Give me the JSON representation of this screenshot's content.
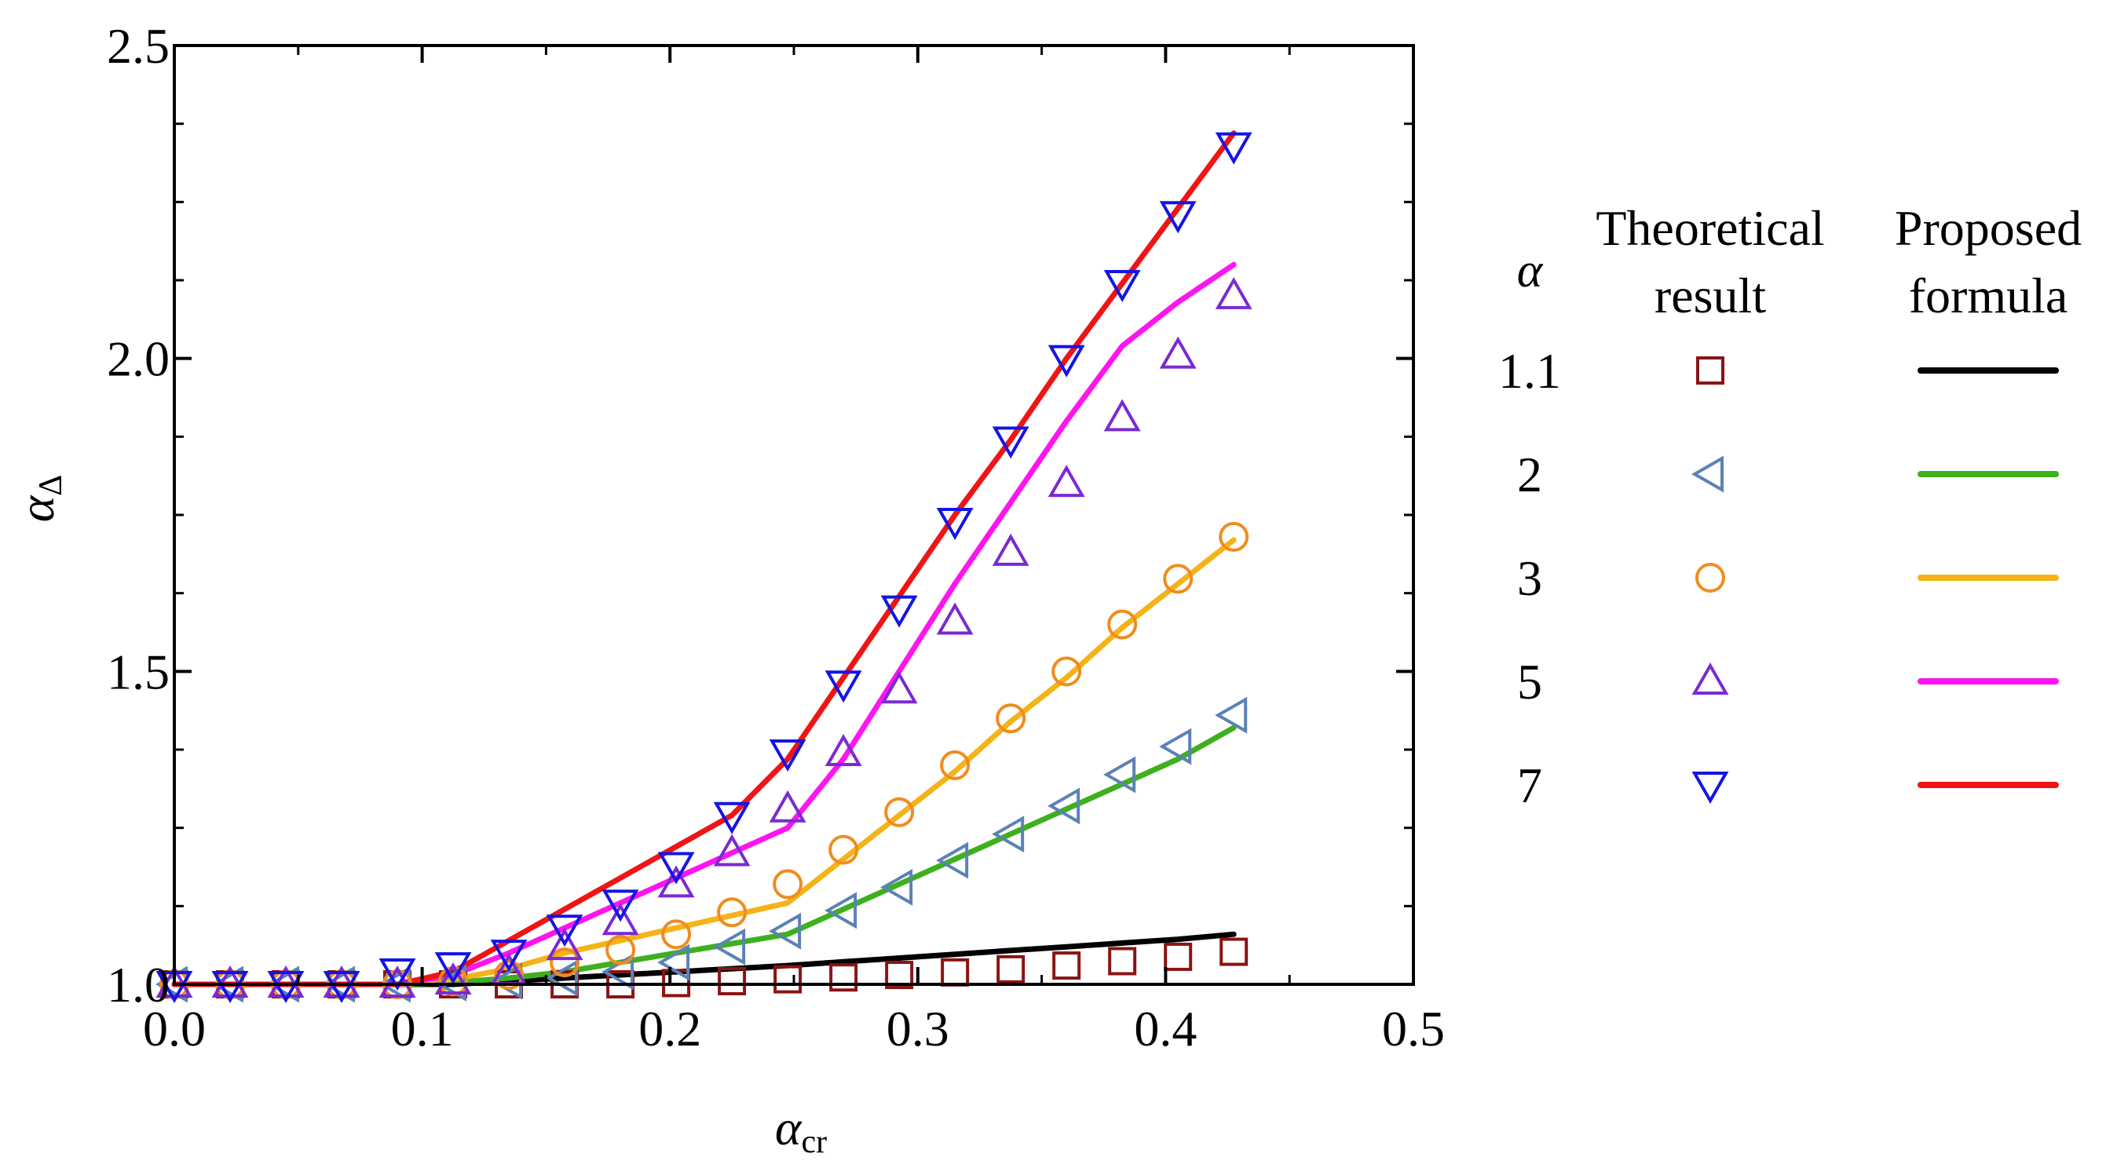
{
  "chart_data": {
    "type": "line",
    "title": "",
    "xlabel": {
      "base": "α",
      "sub": "cr"
    },
    "ylabel": {
      "base": "α",
      "sub": "Δ"
    },
    "xlim": [
      0.0,
      0.5
    ],
    "ylim": [
      1.0,
      2.5
    ],
    "xticks": [
      0.0,
      0.1,
      0.2,
      0.3,
      0.4,
      0.5
    ],
    "yticks": [
      1.0,
      1.5,
      2.0,
      2.5
    ],
    "xtick_labels": [
      "0.0",
      "0.1",
      "0.2",
      "0.3",
      "0.4",
      "0.5"
    ],
    "ytick_labels": [
      "1.0",
      "1.5",
      "2.0",
      "2.5"
    ],
    "grid": false,
    "legend": {
      "position": "right-outside",
      "param_header": "α",
      "marker_header": [
        "Theoretical",
        "result"
      ],
      "line_header": [
        "Proposed",
        "formula"
      ]
    },
    "x": [
      0.0,
      0.0225,
      0.045,
      0.0675,
      0.09,
      0.1125,
      0.135,
      0.1575,
      0.18,
      0.2025,
      0.225,
      0.2475,
      0.27,
      0.2925,
      0.315,
      0.3375,
      0.36,
      0.3825,
      0.405,
      0.4275
    ],
    "series": [
      {
        "alpha": "1.1",
        "marker": "square",
        "marker_color": "#8b1414",
        "line_color": "#000000",
        "theoretical": [
          1.0,
          1.0,
          1.0,
          1.0,
          1.0,
          1.0,
          1.0,
          1.0,
          1.0,
          1.002,
          1.005,
          1.008,
          1.011,
          1.015,
          1.019,
          1.024,
          1.03,
          1.037,
          1.044,
          1.052
        ],
        "formula": [
          1.0,
          1.0,
          1.0,
          1.0,
          1.0,
          1.0,
          1.005,
          1.01,
          1.015,
          1.02,
          1.025,
          1.03,
          1.036,
          1.042,
          1.048,
          1.054,
          1.06,
          1.066,
          1.072,
          1.08
        ]
      },
      {
        "alpha": "2",
        "marker": "triangle-left",
        "marker_color": "#5b82b5",
        "line_color": "#3db01e",
        "theoretical": [
          1.0,
          1.0,
          1.0,
          1.0,
          1.0,
          1.002,
          1.005,
          1.01,
          1.02,
          1.035,
          1.06,
          1.085,
          1.118,
          1.155,
          1.198,
          1.24,
          1.285,
          1.335,
          1.38,
          1.43
        ],
        "formula": [
          1.0,
          1.0,
          1.0,
          1.0,
          1.0,
          1.003,
          1.01,
          1.02,
          1.035,
          1.05,
          1.065,
          1.08,
          1.12,
          1.16,
          1.2,
          1.24,
          1.28,
          1.32,
          1.36,
          1.41
        ]
      },
      {
        "alpha": "3",
        "marker": "circle",
        "marker_color": "#f08c1e",
        "line_color": "#f5b31a",
        "theoretical": [
          1.0,
          1.0,
          1.0,
          1.0,
          1.0,
          1.005,
          1.015,
          1.035,
          1.055,
          1.08,
          1.115,
          1.16,
          1.215,
          1.275,
          1.35,
          1.425,
          1.5,
          1.575,
          1.648,
          1.715
        ],
        "formula": [
          1.0,
          1.0,
          1.0,
          1.0,
          1.0,
          1.008,
          1.025,
          1.05,
          1.07,
          1.09,
          1.11,
          1.13,
          1.2,
          1.27,
          1.34,
          1.42,
          1.49,
          1.57,
          1.64,
          1.71
        ]
      },
      {
        "alpha": "5",
        "marker": "triangle-up",
        "marker_color": "#7a2ad2",
        "line_color": "#ff14f0",
        "theoretical": [
          1.0,
          1.0,
          1.0,
          1.0,
          1.0,
          1.005,
          1.02,
          1.06,
          1.1,
          1.16,
          1.21,
          1.28,
          1.37,
          1.47,
          1.58,
          1.69,
          1.8,
          1.905,
          2.005,
          2.1
        ],
        "formula": [
          1.0,
          1.0,
          1.0,
          1.0,
          1.0,
          1.015,
          1.05,
          1.09,
          1.13,
          1.17,
          1.21,
          1.25,
          1.36,
          1.5,
          1.64,
          1.77,
          1.9,
          2.02,
          2.09,
          2.15
        ]
      },
      {
        "alpha": "7",
        "marker": "triangle-down",
        "marker_color": "#1414e6",
        "line_color": "#f01414",
        "theoretical": [
          1.0,
          1.0,
          1.0,
          1.0,
          1.02,
          1.03,
          1.05,
          1.09,
          1.13,
          1.19,
          1.27,
          1.37,
          1.48,
          1.6,
          1.74,
          1.87,
          2.0,
          2.12,
          2.23,
          2.34
        ],
        "formula": [
          1.0,
          1.0,
          1.0,
          1.0,
          1.0,
          1.02,
          1.07,
          1.12,
          1.17,
          1.22,
          1.27,
          1.36,
          1.49,
          1.62,
          1.75,
          1.87,
          2.0,
          2.12,
          2.24,
          2.36
        ]
      }
    ]
  }
}
